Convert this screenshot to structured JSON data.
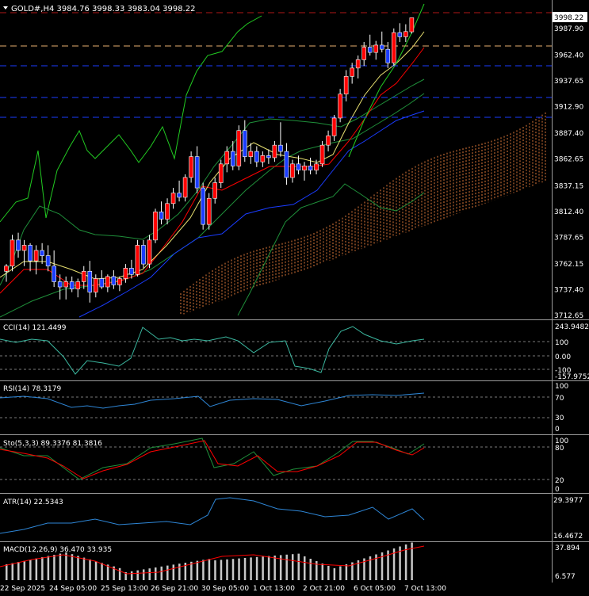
{
  "main": {
    "header": "GOLD#,H4  3984.76 3998.33 3983.04 3998.22",
    "price_badge": "3998.22",
    "y_labels": [
      "3987.90",
      "3962.40",
      "3937.65",
      "3912.90",
      "3887.40",
      "3862.65",
      "3837.15",
      "3812.40",
      "3787.65",
      "3762.15",
      "3737.40",
      "3712.65"
    ]
  },
  "cci": {
    "label": "CCI(14) 121.4499",
    "y_labels": [
      "243.9482",
      "100",
      "0.00",
      "-100",
      "-157.9752"
    ]
  },
  "rsi": {
    "label": "RSI(14) 78.3179",
    "y_labels": [
      "100",
      "70",
      "30",
      "0"
    ]
  },
  "stoch": {
    "label": "Sto(5,3,3) 89.3376 81.3816",
    "y_labels": [
      "100",
      "80",
      "20",
      "0"
    ]
  },
  "atr": {
    "label": "ATR(14) 22.5343",
    "y_labels": [
      "29.3977",
      "16.4672"
    ]
  },
  "macd": {
    "label": "MACD(12,26,9) 36.470 33.935",
    "y_labels": [
      "37.894",
      "6.577"
    ]
  },
  "x_labels": [
    "22 Sep 2025",
    "24 Sep 05:00",
    "25 Sep 13:00",
    "26 Sep 21:00",
    "30 Sep 05:00",
    "1 Oct 13:00",
    "2 Oct 21:00",
    "6 Oct 05:00",
    "7 Oct 13:00"
  ],
  "colors": {
    "bull": "#ff0000",
    "bear": "#1a3cff",
    "grid": "#7a7a7a",
    "axis_text": "#ffffff",
    "env_upper": "#22cc22",
    "env_lower": "#22cc22",
    "bb": "#1f8f3a",
    "ma_fast": "#e8e070",
    "ma_red": "#ff0000",
    "ma_blue": "#1a3cff",
    "cloud": "#e07a3a",
    "indicator": "#2e86d6",
    "signal": "#ff0000",
    "macd_bar": "#c8c8c8"
  },
  "candles": [
    [
      3755,
      3762,
      3745,
      3760
    ],
    [
      3760,
      3790,
      3755,
      3785
    ],
    [
      3785,
      3792,
      3768,
      3775
    ],
    [
      3775,
      3785,
      3760,
      3780
    ],
    [
      3780,
      3782,
      3755,
      3765
    ],
    [
      3765,
      3780,
      3752,
      3775
    ],
    [
      3775,
      3782,
      3762,
      3770
    ],
    [
      3770,
      3780,
      3755,
      3760
    ],
    [
      3760,
      3775,
      3740,
      3745
    ],
    [
      3745,
      3752,
      3728,
      3740
    ],
    [
      3740,
      3750,
      3728,
      3745
    ],
    [
      3745,
      3750,
      3735,
      3738
    ],
    [
      3738,
      3748,
      3730,
      3745
    ],
    [
      3745,
      3760,
      3738,
      3755
    ],
    [
      3755,
      3765,
      3725,
      3735
    ],
    [
      3735,
      3752,
      3730,
      3748
    ],
    [
      3748,
      3756,
      3738,
      3740
    ],
    [
      3740,
      3752,
      3735,
      3750
    ],
    [
      3750,
      3756,
      3738,
      3742
    ],
    [
      3742,
      3750,
      3736,
      3748
    ],
    [
      3748,
      3762,
      3744,
      3758
    ],
    [
      3758,
      3766,
      3748,
      3752
    ],
    [
      3752,
      3785,
      3750,
      3780
    ],
    [
      3780,
      3785,
      3758,
      3762
    ],
    [
      3762,
      3790,
      3758,
      3785
    ],
    [
      3785,
      3815,
      3782,
      3812
    ],
    [
      3812,
      3822,
      3800,
      3805
    ],
    [
      3805,
      3825,
      3800,
      3820
    ],
    [
      3820,
      3835,
      3815,
      3830
    ],
    [
      3830,
      3842,
      3822,
      3826
    ],
    [
      3826,
      3848,
      3822,
      3845
    ],
    [
      3845,
      3870,
      3840,
      3865
    ],
    [
      3865,
      3875,
      3830,
      3835
    ],
    [
      3835,
      3840,
      3795,
      3800
    ],
    [
      3800,
      3830,
      3795,
      3825
    ],
    [
      3825,
      3845,
      3820,
      3840
    ],
    [
      3840,
      3862,
      3835,
      3858
    ],
    [
      3858,
      3875,
      3850,
      3870
    ],
    [
      3870,
      3880,
      3852,
      3856
    ],
    [
      3856,
      3895,
      3852,
      3890
    ],
    [
      3890,
      3900,
      3860,
      3865
    ],
    [
      3865,
      3878,
      3858,
      3870
    ],
    [
      3870,
      3875,
      3855,
      3860
    ],
    [
      3860,
      3870,
      3855,
      3866
    ],
    [
      3866,
      3872,
      3858,
      3864
    ],
    [
      3864,
      3880,
      3860,
      3876
    ],
    [
      3876,
      3898,
      3865,
      3870
    ],
    [
      3870,
      3878,
      3838,
      3845
    ],
    [
      3845,
      3862,
      3840,
      3858
    ],
    [
      3858,
      3866,
      3848,
      3852
    ],
    [
      3852,
      3860,
      3842,
      3856
    ],
    [
      3856,
      3864,
      3848,
      3852
    ],
    [
      3852,
      3862,
      3848,
      3858
    ],
    [
      3858,
      3880,
      3855,
      3876
    ],
    [
      3876,
      3890,
      3870,
      3885
    ],
    [
      3885,
      3905,
      3880,
      3902
    ],
    [
      3902,
      3930,
      3898,
      3925
    ],
    [
      3925,
      3948,
      3918,
      3942
    ],
    [
      3942,
      3955,
      3935,
      3950
    ],
    [
      3950,
      3962,
      3940,
      3958
    ],
    [
      3958,
      3975,
      3952,
      3970
    ],
    [
      3970,
      3982,
      3962,
      3965
    ],
    [
      3965,
      3976,
      3958,
      3972
    ],
    [
      3972,
      3985,
      3965,
      3968
    ],
    [
      3968,
      3975,
      3950,
      3955
    ],
    [
      3955,
      3988,
      3952,
      3984
    ],
    [
      3984,
      3993,
      3975,
      3980
    ],
    [
      3980,
      3992,
      3975,
      3985
    ],
    [
      3984.76,
      3998.33,
      3983.04,
      3998.22
    ]
  ]
}
